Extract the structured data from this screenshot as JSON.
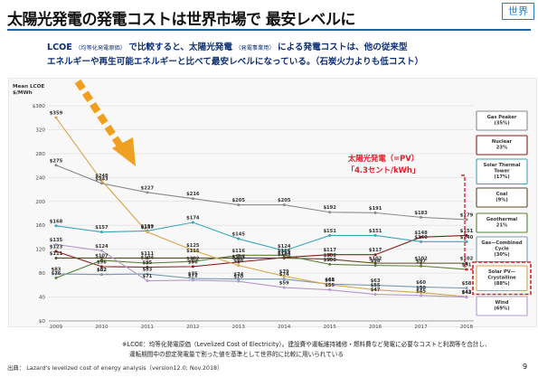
{
  "page": {
    "title": "太陽光発電の発電コストは世界市場で 最安レベルに",
    "tag": "世界",
    "body_line1_prefix": "LCOE",
    "body_line1_small": "（均等化発電原価）",
    "body_line1_middle": "で比較すると、太陽光発電",
    "body_line1_small2": "（発電事業用）",
    "body_line1_suffix": "による発電コストは、他の従来型",
    "body_line2": "エネルギーや再生可能エネルギーと比べて最安レベルになっている。（石炭火力よりも低コスト）",
    "footnote_line1": "※LCOE：均等化発電原価（Levelized Cost of Electricity）。建設費や運転維持補修・燃料費など発電に必要なコストと利潤等を合計し、",
    "footnote_line2": "運転期間中の想定発電量で割った値を基準として世界的に比較に用いられている",
    "source": "出典： Lazard's levelized cost of energy analysis（version12.0; Nov.2018）",
    "page_number": "9",
    "callout_line1": "太陽光発電（=PV）",
    "callout_line2": "「4.3セント/kWh」"
  },
  "chart_data": {
    "type": "line",
    "ylabel": "Mean LCOE\n$/MWh",
    "ylim": [
      0,
      380
    ],
    "yticks": [
      "$0",
      "40",
      "80",
      "120",
      "160",
      "200",
      "240",
      "280",
      "320",
      "$380"
    ],
    "x": [
      "2009",
      "2010",
      "2011",
      "2012",
      "2013",
      "2014",
      "2015",
      "2016",
      "2017",
      "2018"
    ],
    "series": [
      {
        "name": "Gas Peaker\n(35%)",
        "color": "#8a8a8a",
        "values": [
          275,
          243,
          227,
          216,
          205,
          205,
          192,
          191,
          183,
          179
        ]
      },
      {
        "name": "Nuclear\n23%",
        "color": "#8b1a1a",
        "values": [
          123,
          96,
          95,
          96,
          104,
          112,
          117,
          117,
          148,
          151
        ]
      },
      {
        "name": "Solar Thermal\nTower\n(17%)",
        "color": "#3aa8b8",
        "values": [
          168,
          157,
          159,
          174,
          145,
          124,
          151,
          151,
          140,
          140
        ]
      },
      {
        "name": "Coal\n(9%)",
        "color": "#5a4a2a",
        "values": [
          111,
          111,
          111,
          111,
          111,
          111,
          109,
          102,
          102,
          102
        ]
      },
      {
        "name": "Geothermal\n21%",
        "color": "#5a7f35",
        "values": [
          76,
          107,
          102,
          105,
          116,
          116,
          100,
          98,
          97,
          91
        ]
      },
      {
        "name": "Gas—Combined\nCycle\n(30%)",
        "color": "#7a9ab2",
        "values": [
          83,
          82,
          83,
          75,
          74,
          74,
          65,
          63,
          60,
          58
        ]
      },
      {
        "name": "Solar PV—\nCrystalline\n(88%)",
        "color": "#d6a64a",
        "values": [
          359,
          248,
          157,
          125,
          98,
          79,
          64,
          55,
          50,
          43
        ]
      },
      {
        "name": "Wind\n(69%)",
        "color": "#b49ac8",
        "values": [
          135,
          124,
          71,
          72,
          70,
          59,
          55,
          47,
          45,
          42
        ]
      }
    ],
    "data_labels": [
      [
        "$359",
        "$248",
        "$157",
        "$125",
        "$98",
        "$79",
        "$64",
        "$55",
        "$50",
        "$43"
      ],
      [
        "$275",
        "$243",
        "$227",
        "$216",
        "$205",
        "$205",
        "$192",
        "$191",
        "$183",
        "$179"
      ],
      [
        "$168",
        "$157",
        "$159",
        "$174",
        "$145",
        "$124",
        "$151",
        "$151",
        "$148",
        "$151"
      ],
      [
        "$135",
        "$124",
        "$111",
        "$116",
        "$116",
        "$116",
        "$117",
        "$117",
        "$140",
        "$140"
      ],
      [
        "$123",
        "$107",
        "$104",
        "$102",
        "$105",
        "$112",
        "$108",
        "$102",
        "$102",
        "$102"
      ],
      [
        "$111",
        "$96",
        "$95",
        "$96",
        "$104",
        "$109",
        "$100",
        "$98",
        "$97",
        "$91"
      ],
      [
        "$83",
        "$82",
        "$83",
        "$75",
        "$74",
        "$74",
        "$65",
        "$63",
        "$60",
        "$58"
      ],
      [
        "$76",
        "$82",
        "$71",
        "$72",
        "$70",
        "$59",
        "$55",
        "$47",
        "$45",
        "$42"
      ]
    ],
    "legend_placement": "right",
    "highlight_series": "Solar PV—\nCrystalline\n(88%)",
    "grid": true
  }
}
